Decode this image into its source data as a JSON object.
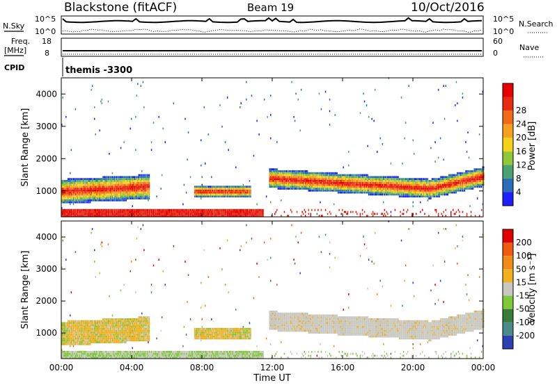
{
  "header": {
    "station": "Blackstone (fitACF)",
    "beam": "Beam 19",
    "date": "10/Oct/2016"
  },
  "top_panels": {
    "nsky_label": "N.Sky",
    "nsky_ticks": [
      "10^5",
      "10^0"
    ],
    "nsearch_label": "N.Search",
    "nsearch_ticks": [
      "10^5",
      "10^0"
    ],
    "freq_label": "Freq.",
    "freq_unit": "[MHz]",
    "freq_ticks": [
      "18",
      "8"
    ],
    "nave_label": "Nave",
    "nave_ticks": [
      "60",
      "0"
    ],
    "cpid_label": "CPID",
    "cpid_value": "themis -3300"
  },
  "chart_data": [
    {
      "type": "heatmap",
      "name": "power",
      "ylabel": "Slant Range [km]",
      "ylim": [
        200,
        4500
      ],
      "yticks": [
        1000,
        2000,
        3000,
        4000
      ],
      "xlim": [
        0,
        24
      ],
      "colorbar_label": "Power [dB]",
      "colorbar_ticks": [
        "4",
        "8",
        "12",
        "16",
        "20",
        "24",
        "28"
      ],
      "colorbar_colors": [
        "#1e1eff",
        "#2a6db8",
        "#4aa070",
        "#90c83a",
        "#f5d21a",
        "#f7a020",
        "#f06a18",
        "#e82a10",
        "#e60000"
      ],
      "echo_bands": [
        {
          "t0": 0.0,
          "t1": 5.0,
          "r_low": 500,
          "r_high": 1700
        },
        {
          "t0": 7.5,
          "t1": 10.8,
          "r_low": 800,
          "r_high": 1100
        },
        {
          "t0": 11.8,
          "t1": 24.0,
          "r_low": 800,
          "r_high": 1600
        }
      ]
    },
    {
      "type": "heatmap",
      "name": "velocity",
      "ylabel": "Slant Range [km]",
      "ylim": [
        200,
        4500
      ],
      "yticks": [
        1000,
        2000,
        3000,
        4000
      ],
      "xlim": [
        0,
        24
      ],
      "xticks": [
        "00:00",
        "04:00",
        "08:00",
        "12:00",
        "16:00",
        "20:00",
        "00:00"
      ],
      "xlabel": "Time UT",
      "colorbar_label": "Velocity [m s⁻¹]",
      "colorbar_ticks": [
        "200",
        "100",
        "50",
        "15",
        "-15",
        "-50",
        "-100",
        "-200"
      ],
      "colorbar_colors": [
        "#2a3fb0",
        "#4a8a8a",
        "#3a7a3a",
        "#7ec83a",
        "#c8c8c0",
        "#f0b020",
        "#f08a18",
        "#f05a10",
        "#e00000"
      ]
    }
  ]
}
